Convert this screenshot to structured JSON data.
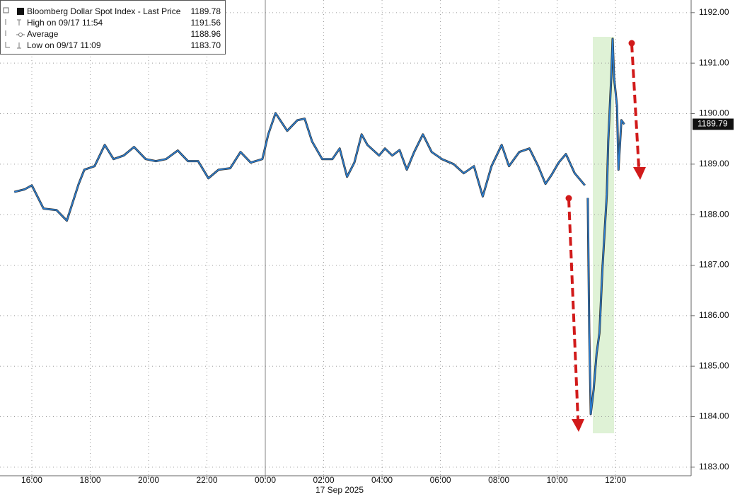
{
  "chart_data": {
    "type": "line",
    "x_label": "17 Sep 2025",
    "xlim": [
      -9.09,
      14.59
    ],
    "xticks": [
      {
        "value": -8,
        "label": "16:00"
      },
      {
        "value": -6,
        "label": "18:00"
      },
      {
        "value": -4,
        "label": "20:00"
      },
      {
        "value": -2,
        "label": "22:00"
      },
      {
        "value": 0,
        "label": "00:00"
      },
      {
        "value": 2,
        "label": "02:00"
      },
      {
        "value": 4,
        "label": "04:00"
      },
      {
        "value": 6,
        "label": "06:00"
      },
      {
        "value": 8,
        "label": "08:00"
      },
      {
        "value": 10,
        "label": "10:00"
      },
      {
        "value": 12,
        "label": "12:00"
      }
    ],
    "ylim": [
      1182.83,
      1192.25
    ],
    "yticks": [
      {
        "value": 1183,
        "label": "1183.00"
      },
      {
        "value": 1184,
        "label": "1184.00"
      },
      {
        "value": 1185,
        "label": "1185.00"
      },
      {
        "value": 1186,
        "label": "1186.00"
      },
      {
        "value": 1187,
        "label": "1187.00"
      },
      {
        "value": 1188,
        "label": "1188.00"
      },
      {
        "value": 1189,
        "label": "1189.00"
      },
      {
        "value": 1190,
        "label": "1190.00"
      },
      {
        "value": 1191,
        "label": "1191.00"
      },
      {
        "value": 1192,
        "label": "1192.00"
      }
    ],
    "grid": true,
    "x": [
      -8.6,
      -8.25,
      -8.0,
      -7.6,
      -7.15,
      -6.8,
      -6.4,
      -6.2,
      -5.85,
      -5.5,
      -5.2,
      -4.85,
      -4.5,
      -4.1,
      -3.75,
      -3.4,
      -3.0,
      -2.65,
      -2.3,
      -1.95,
      -1.6,
      -1.2,
      -0.85,
      -0.5,
      -0.1,
      0.1,
      0.35,
      0.75,
      1.1,
      1.35,
      1.6,
      1.95,
      2.3,
      2.55,
      2.8,
      3.05,
      3.3,
      3.5,
      3.9,
      4.1,
      4.35,
      4.6,
      4.85,
      5.1,
      5.4,
      5.7,
      6.05,
      6.45,
      6.8,
      7.15,
      7.45,
      7.75,
      8.1,
      8.35,
      8.7,
      9.05,
      9.35,
      9.6,
      9.8,
      10.05,
      10.3,
      10.6,
      10.95,
      11.0,
      11.05,
      11.1,
      11.15,
      11.25,
      11.35,
      11.45,
      11.55,
      11.7,
      11.75,
      11.85,
      11.9,
      11.95,
      12.05,
      12.1,
      12.2,
      12.3
    ],
    "series": [
      {
        "name": "Bloomberg Dollar Spot Index - Last Price",
        "color": "#2a7fd4",
        "values": [
          1188.45,
          1188.5,
          1188.58,
          1188.12,
          1188.09,
          1187.88,
          1188.6,
          1188.89,
          1188.96,
          1189.38,
          1189.1,
          1189.17,
          1189.34,
          1189.1,
          1189.06,
          1189.1,
          1189.27,
          1189.06,
          1189.06,
          1188.72,
          1188.89,
          1188.92,
          1189.24,
          1189.03,
          1189.1,
          1189.59,
          1190.01,
          1189.66,
          1189.87,
          1189.9,
          1189.45,
          1189.1,
          1189.1,
          1189.31,
          1188.75,
          1189.03,
          1189.59,
          1189.38,
          1189.17,
          1189.31,
          1189.17,
          1189.28,
          1188.89,
          1189.24,
          1189.59,
          1189.24,
          1189.1,
          1189.0,
          1188.82,
          1188.96,
          1188.36,
          1188.96,
          1189.38,
          1188.96,
          1189.24,
          1189.31,
          1188.96,
          1188.61,
          1188.78,
          1189.03,
          1189.2,
          1188.82,
          1188.58,
          null,
          1188.33,
          1185.66,
          1184.05,
          1184.54,
          1185.24,
          1185.66,
          1186.93,
          1188.4,
          1189.45,
          1190.71,
          1191.48,
          1190.71,
          1190.15,
          1188.89,
          1189.87,
          1189.79
        ]
      }
    ],
    "legend": {
      "title_value": "1189.78",
      "rows": [
        {
          "label": "High on 09/17 11:54",
          "value": "1191.56"
        },
        {
          "label": "Average",
          "value": "1188.96"
        },
        {
          "label": "Low on 09/17 11:09",
          "value": "1183.70"
        }
      ]
    },
    "last_price": {
      "value": 1189.79,
      "label": "1189.79"
    }
  }
}
